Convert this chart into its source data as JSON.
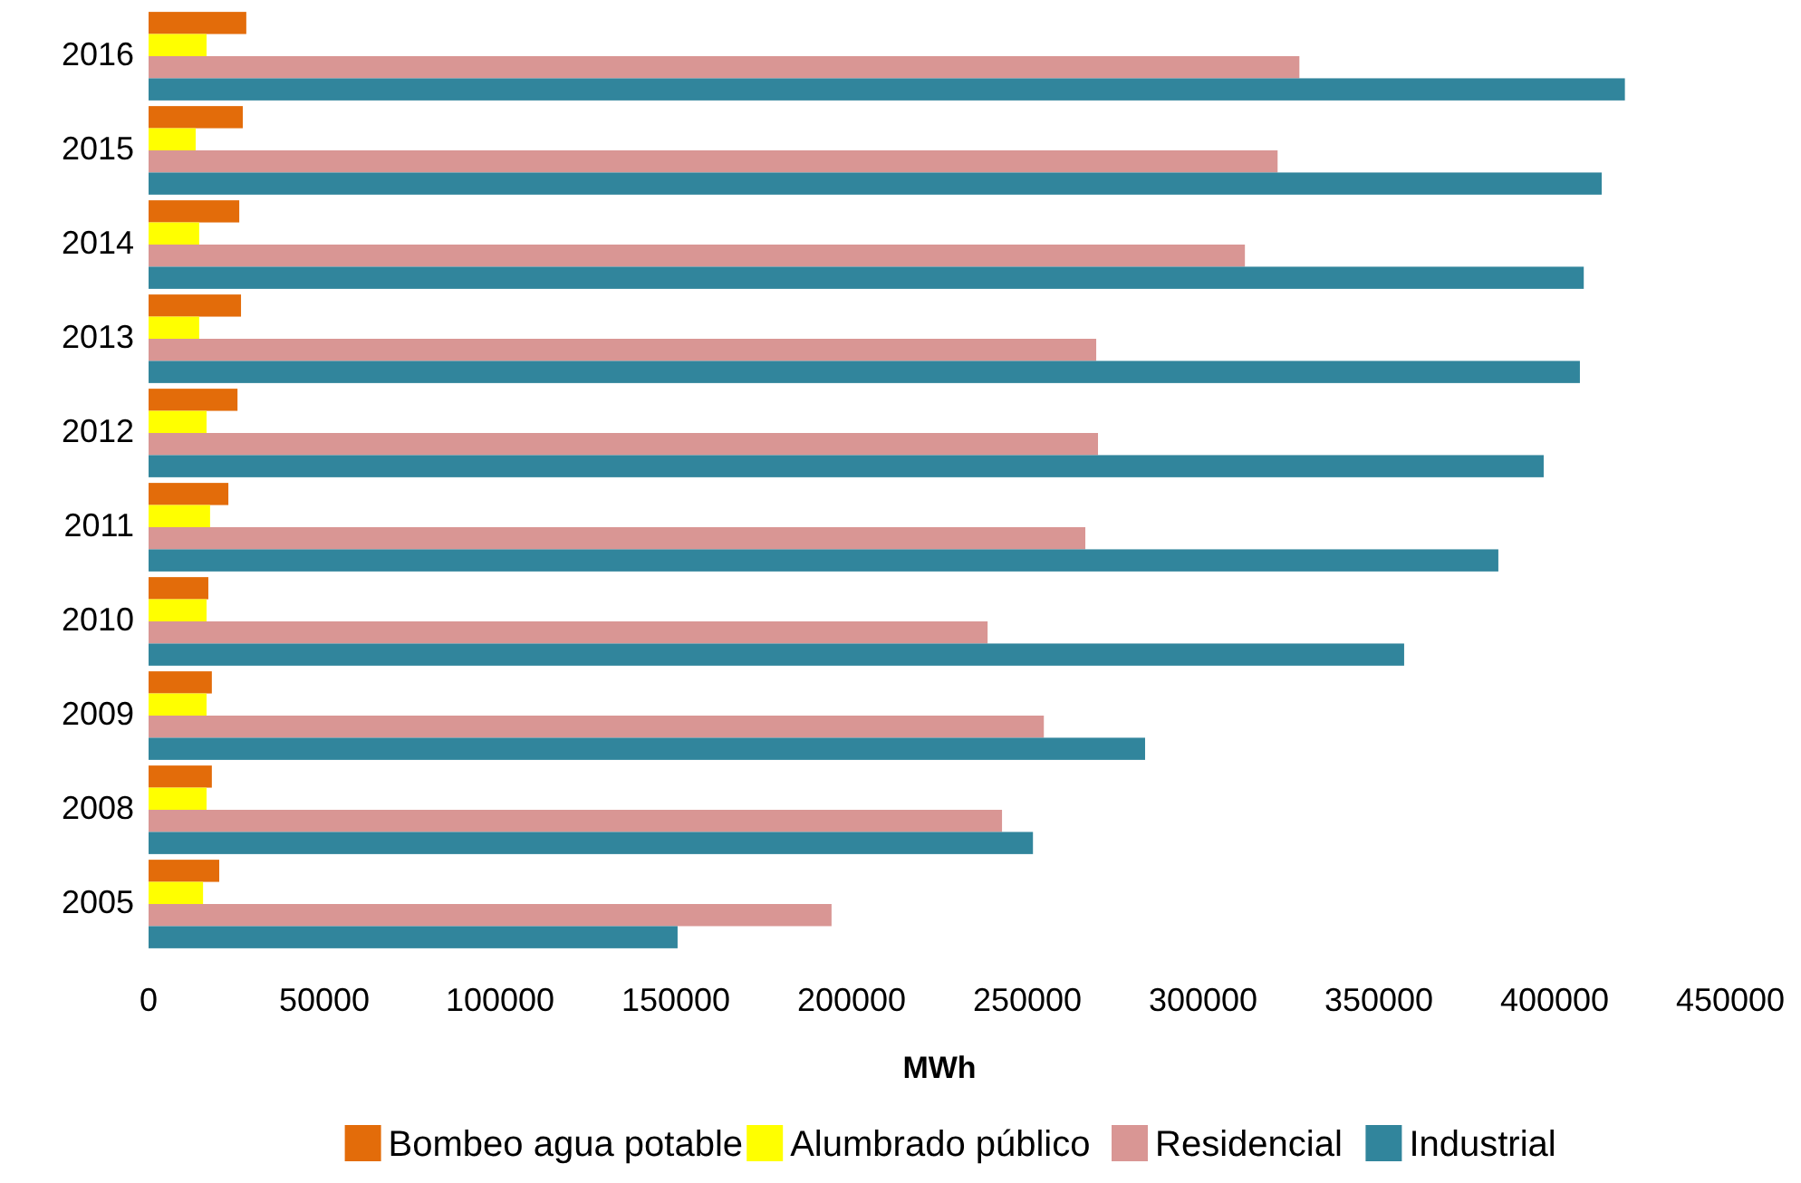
{
  "chart_data": {
    "type": "bar",
    "orientation": "horizontal",
    "xlabel": "MWh",
    "categories": [
      "2016",
      "2015",
      "2014",
      "2013",
      "2012",
      "2011",
      "2010",
      "2009",
      "2008",
      "2005"
    ],
    "series": [
      {
        "name": "Bombeo agua potable",
        "color": "#e36c0a",
        "values": [
          27800,
          26800,
          25800,
          26300,
          25300,
          22700,
          17000,
          18000,
          18000,
          20100
        ]
      },
      {
        "name": "Alumbrado público",
        "color": "#ffff00",
        "values": [
          16500,
          13400,
          14400,
          14400,
          16500,
          17500,
          16500,
          16500,
          16500,
          15500
        ]
      },
      {
        "name": "Residencial",
        "color": "#d99694",
        "values": [
          327400,
          321200,
          311900,
          269600,
          270100,
          266500,
          238700,
          254700,
          242800,
          194300
        ]
      },
      {
        "name": "Industrial",
        "color": "#31859c",
        "values": [
          420000,
          413400,
          408300,
          407200,
          396900,
          384000,
          357200,
          283500,
          251600,
          150500
        ]
      }
    ],
    "xlim": [
      0,
      450000
    ],
    "xticks": [
      0,
      50000,
      100000,
      150000,
      200000,
      250000,
      300000,
      350000,
      400000,
      450000
    ],
    "grid": false,
    "legend": "bottom"
  }
}
